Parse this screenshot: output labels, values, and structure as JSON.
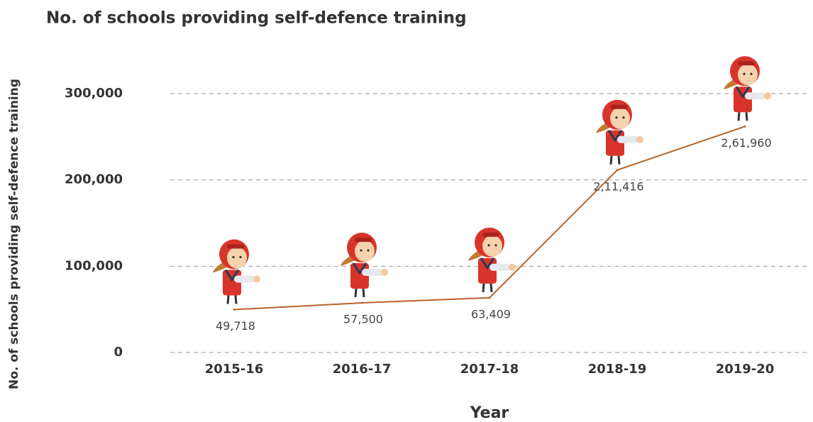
{
  "chart_data": {
    "type": "line",
    "title": "No. of schools providing  self-defence training",
    "x_label": "Year",
    "y_label": "No. of schools providing  self-defence training",
    "categories": [
      "2015-16",
      "2016-17",
      "2017-18",
      "2018-19",
      "2019-20"
    ],
    "values": [
      49718,
      57500,
      63409,
      211416,
      261960
    ],
    "value_labels": [
      "49,718",
      "57,500",
      "63,409",
      "2,11,416",
      "2,61,960"
    ],
    "color": "#b5652b",
    "ylim": [
      0,
      300000
    ],
    "yticks": [
      0,
      {
        "value": 100000,
        "label": "100,000"
      },
      {
        "value": 200000,
        "label": "200,000"
      },
      {
        "value": 300000,
        "label": "300,000"
      }
    ],
    "grid": true
  }
}
